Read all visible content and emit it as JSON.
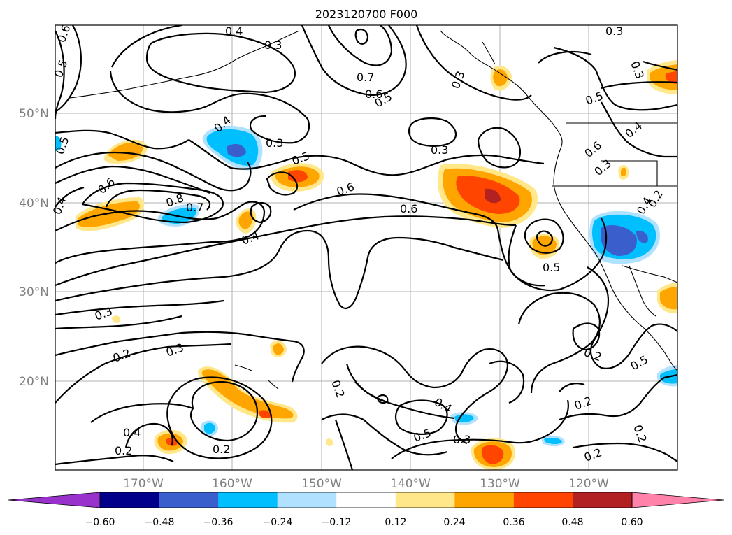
{
  "title": "2023120700 F000",
  "lat_labels": [
    "50°N",
    "40°N",
    "30°N",
    "20°N"
  ],
  "lon_labels": [
    "170°W",
    "160°W",
    "150°W",
    "140°W",
    "130°W",
    "120°W"
  ],
  "colorbar": {
    "ticks": [
      "−0.60",
      "−0.48",
      "−0.36",
      "−0.24",
      "−0.12",
      "0.12",
      "0.24",
      "0.36",
      "0.48",
      "0.60"
    ],
    "colors": {
      "under": "#9932cc",
      "bins": [
        "#00008b",
        "#3a5fcd",
        "#00bfff",
        "#b0e2ff",
        "#ffffff",
        "#ffe78a",
        "#ffa500",
        "#ff4500",
        "#b22222"
      ],
      "over": "#ff82ab"
    }
  },
  "contour_labels": {
    "lbl_0_6_a": "0.6",
    "lbl_0_5_a": "0.5",
    "lbl_0_4_a": "0.4",
    "lbl_0_3_a": "0.3",
    "lbl_0_5_b": "0.5",
    "lbl_0_3_b": "0.3",
    "lbl_0_7_a": "0.7",
    "lbl_0_6_b": "0.6",
    "lbl_0_5_c": "0.5",
    "lbl_0_3_c": "0.3",
    "lbl_0_4_b": "0.4",
    "lbl_0_3_d": "0.3",
    "lbl_0_5_d": "0.5",
    "lbl_0_3_e": "0.3",
    "lbl_0_6_c": "0.6",
    "lbl_0_8": "0.8",
    "lbl_0_7_b": "0.7",
    "lbl_0_4_c": "0.4",
    "lbl_0_6_d": "0.6",
    "lbl_0_6_e": "0.6",
    "lbl_0_5_e": "0.5",
    "lbl_0_6_f": "0.6",
    "lbl_0_3_f": "0.3",
    "lbl_0_4_d": "0.4",
    "lbl_0_4_e": "0.4",
    "lbl_0_5_f": "0.5",
    "lbl_0_5_g": "0.5",
    "lbl_0_4_f": "0.4",
    "lbl_0_3_g": "0.3",
    "lbl_0_2_a": "0.2",
    "lbl_0_3_h": "0.3",
    "lbl_0_2_b": "0.2",
    "lbl_0_4_g": "0.4",
    "lbl_0_2_c": "0.2",
    "lbl_0_2_d": "0.2",
    "lbl_0_4_h": "0.4",
    "lbl_0_5_h": "0.5",
    "lbl_0_3_i": "0.3",
    "lbl_0_2_e": "0.2",
    "lbl_0_2_f": "0.2",
    "lbl_0_2_g": "0.2",
    "lbl_0_3_j": "0.3",
    "lbl_0_2_h": "0.2",
    "lbl_0_2_i": "0.2"
  }
}
